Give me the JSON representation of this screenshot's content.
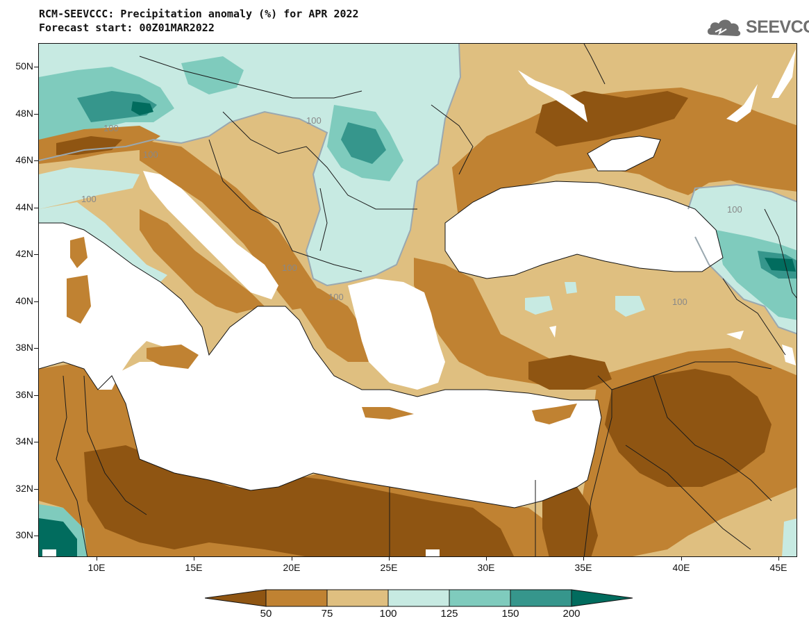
{
  "header": {
    "title": "RCM-SEEVCCC: Precipitation anomaly (%) for APR 2022",
    "subtitle": "Forecast start: 00Z01MAR2022"
  },
  "logo": {
    "text": "SEEVCCC",
    "icon": "cloud-icon"
  },
  "axes": {
    "lat_labels": [
      "50N",
      "48N",
      "46N",
      "44N",
      "42N",
      "40N",
      "38N",
      "36N",
      "34N",
      "32N",
      "30N"
    ],
    "lon_labels": [
      "10E",
      "15E",
      "20E",
      "25E",
      "30E",
      "35E",
      "40E",
      "45E"
    ]
  },
  "contour_labels": [
    "100",
    "100",
    "100",
    "100",
    "100",
    "100",
    "100",
    "100"
  ],
  "colorbar": {
    "labels": [
      "50",
      "75",
      "100",
      "125",
      "150",
      "200"
    ],
    "colors": [
      "#8f5512",
      "#c08232",
      "#dfbf80",
      "#c7eae2",
      "#7fcbbd",
      "#36968c",
      "#016c5e"
    ]
  },
  "map_colors": {
    "sea": "#ffffff",
    "below_50": "#8f5512",
    "range_50_75": "#c08232",
    "range_75_100": "#dfbf80",
    "range_100_125": "#c7eae2",
    "range_125_150": "#7fcbbd",
    "range_150_200": "#36968c",
    "above_200": "#016c5e",
    "contour_100": "#9aa8b0"
  }
}
